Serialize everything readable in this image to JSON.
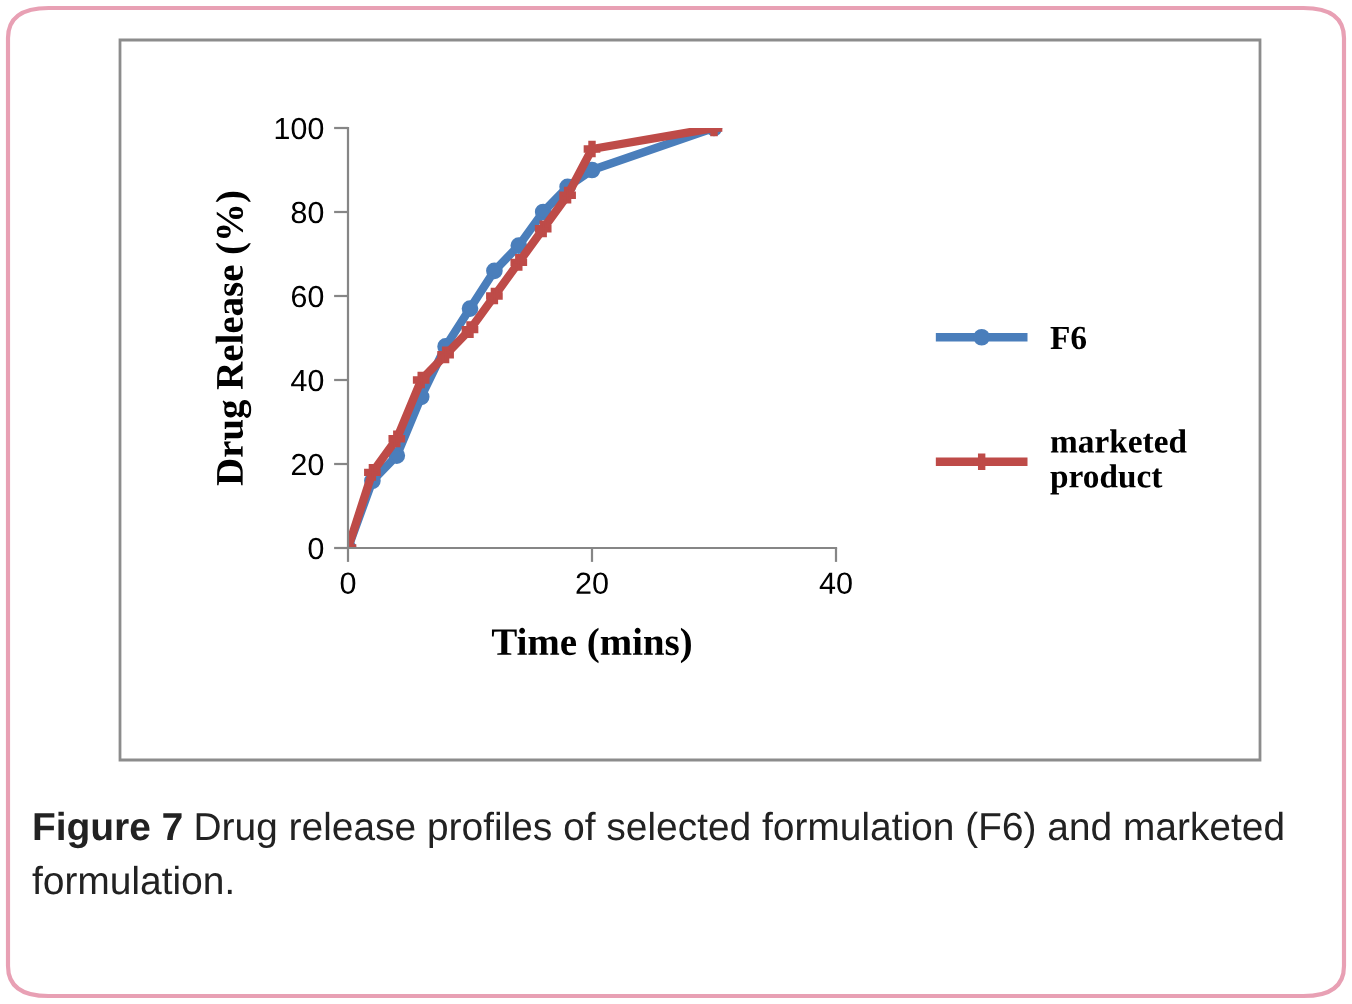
{
  "chart_data": {
    "type": "line",
    "xlabel": "Time (mins)",
    "ylabel": "Drug Release (%)",
    "xlim": [
      0,
      40
    ],
    "xticks": [
      0,
      20,
      40
    ],
    "ylim": [
      0,
      100
    ],
    "yticks": [
      0,
      20,
      40,
      60,
      80,
      100
    ],
    "grid": false,
    "legend": "right",
    "line_style": "solid",
    "series": [
      {
        "name": "F6",
        "color": "#4a7ebb",
        "marker": "circle",
        "x": [
          0,
          2,
          4,
          6,
          8,
          10,
          12,
          14,
          16,
          18,
          20,
          30
        ],
        "values": [
          0,
          16,
          22,
          36,
          48,
          57,
          66,
          72,
          80,
          86,
          90,
          100
        ]
      },
      {
        "name": "marketed product",
        "color": "#be4b48",
        "marker": "cross",
        "x": [
          0,
          2,
          4,
          6,
          8,
          10,
          12,
          14,
          16,
          18,
          20,
          30
        ],
        "values": [
          0,
          18,
          26,
          40,
          46,
          52,
          60,
          68,
          76,
          84,
          95,
          100
        ]
      }
    ],
    "annotations": [
      "Figure 7",
      "Drug release profiles of selected formulation (F6) and marketed formulation."
    ]
  }
}
